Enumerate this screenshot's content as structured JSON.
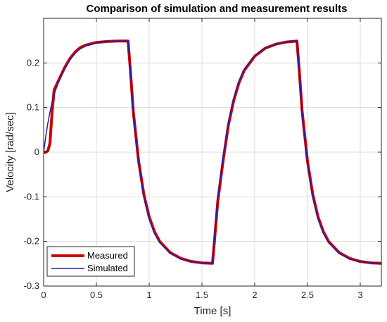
{
  "chart_data": {
    "type": "line",
    "title": "Comparison of simulation and measurement results",
    "xlabel": "Time [s]",
    "ylabel": "Velocity [rad/sec]",
    "xlim": [
      0,
      3.2
    ],
    "ylim": [
      -0.3,
      0.3
    ],
    "xticks": [
      0,
      0.5,
      1,
      1.5,
      2,
      2.5,
      3
    ],
    "xtick_labels": [
      "0",
      "0.5",
      "1",
      "1.5",
      "2",
      "2.5",
      "3"
    ],
    "yticks": [
      -0.3,
      -0.2,
      -0.1,
      0,
      0.1,
      0.2
    ],
    "ytick_labels": [
      "-0.3",
      "-0.2",
      "-0.1",
      "0",
      "0.1",
      "0.2"
    ],
    "grid": true,
    "legend_position": "bottom-left",
    "series": [
      {
        "name": "Measured",
        "color": "#cc0000",
        "x": [
          0,
          0.02,
          0.04,
          0.06,
          0.08,
          0.1,
          0.15,
          0.2,
          0.25,
          0.3,
          0.35,
          0.4,
          0.5,
          0.6,
          0.7,
          0.8,
          0.82,
          0.85,
          0.9,
          0.95,
          1.0,
          1.05,
          1.1,
          1.2,
          1.3,
          1.4,
          1.5,
          1.6,
          1.62,
          1.65,
          1.7,
          1.75,
          1.8,
          1.85,
          1.9,
          2.0,
          2.1,
          2.2,
          2.3,
          2.4,
          2.42,
          2.45,
          2.5,
          2.55,
          2.6,
          2.65,
          2.7,
          2.8,
          2.9,
          3.0,
          3.1,
          3.2
        ],
        "y": [
          0,
          0.0,
          0.003,
          0.02,
          0.09,
          0.14,
          0.165,
          0.19,
          0.21,
          0.225,
          0.235,
          0.24,
          0.246,
          0.248,
          0.249,
          0.249,
          0.19,
          0.09,
          -0.02,
          -0.095,
          -0.145,
          -0.178,
          -0.2,
          -0.225,
          -0.238,
          -0.245,
          -0.248,
          -0.249,
          -0.195,
          -0.11,
          -0.02,
          0.06,
          0.115,
          0.155,
          0.183,
          0.215,
          0.233,
          0.242,
          0.247,
          0.249,
          0.19,
          0.09,
          -0.02,
          -0.095,
          -0.145,
          -0.178,
          -0.2,
          -0.225,
          -0.238,
          -0.245,
          -0.248,
          -0.249
        ]
      },
      {
        "name": "Simulated",
        "color": "#1f1fb4",
        "x": [
          0,
          0.02,
          0.04,
          0.06,
          0.08,
          0.1,
          0.15,
          0.2,
          0.25,
          0.3,
          0.35,
          0.4,
          0.5,
          0.6,
          0.7,
          0.8,
          0.82,
          0.85,
          0.9,
          0.95,
          1.0,
          1.05,
          1.1,
          1.2,
          1.3,
          1.4,
          1.5,
          1.6,
          1.62,
          1.65,
          1.7,
          1.75,
          1.8,
          1.85,
          1.9,
          2.0,
          2.1,
          2.2,
          2.3,
          2.4,
          2.42,
          2.45,
          2.5,
          2.55,
          2.6,
          2.65,
          2.7,
          2.8,
          2.9,
          3.0,
          3.1,
          3.2
        ],
        "y": [
          0,
          0.035,
          0.065,
          0.09,
          0.112,
          0.13,
          0.163,
          0.188,
          0.207,
          0.222,
          0.232,
          0.238,
          0.245,
          0.248,
          0.249,
          0.249,
          0.19,
          0.085,
          -0.025,
          -0.1,
          -0.15,
          -0.182,
          -0.203,
          -0.227,
          -0.239,
          -0.245,
          -0.248,
          -0.249,
          -0.19,
          -0.1,
          -0.01,
          0.065,
          0.12,
          0.158,
          0.185,
          0.216,
          0.233,
          0.242,
          0.247,
          0.249,
          0.19,
          0.085,
          -0.025,
          -0.1,
          -0.15,
          -0.182,
          -0.203,
          -0.227,
          -0.239,
          -0.245,
          -0.248,
          -0.249
        ]
      }
    ]
  }
}
